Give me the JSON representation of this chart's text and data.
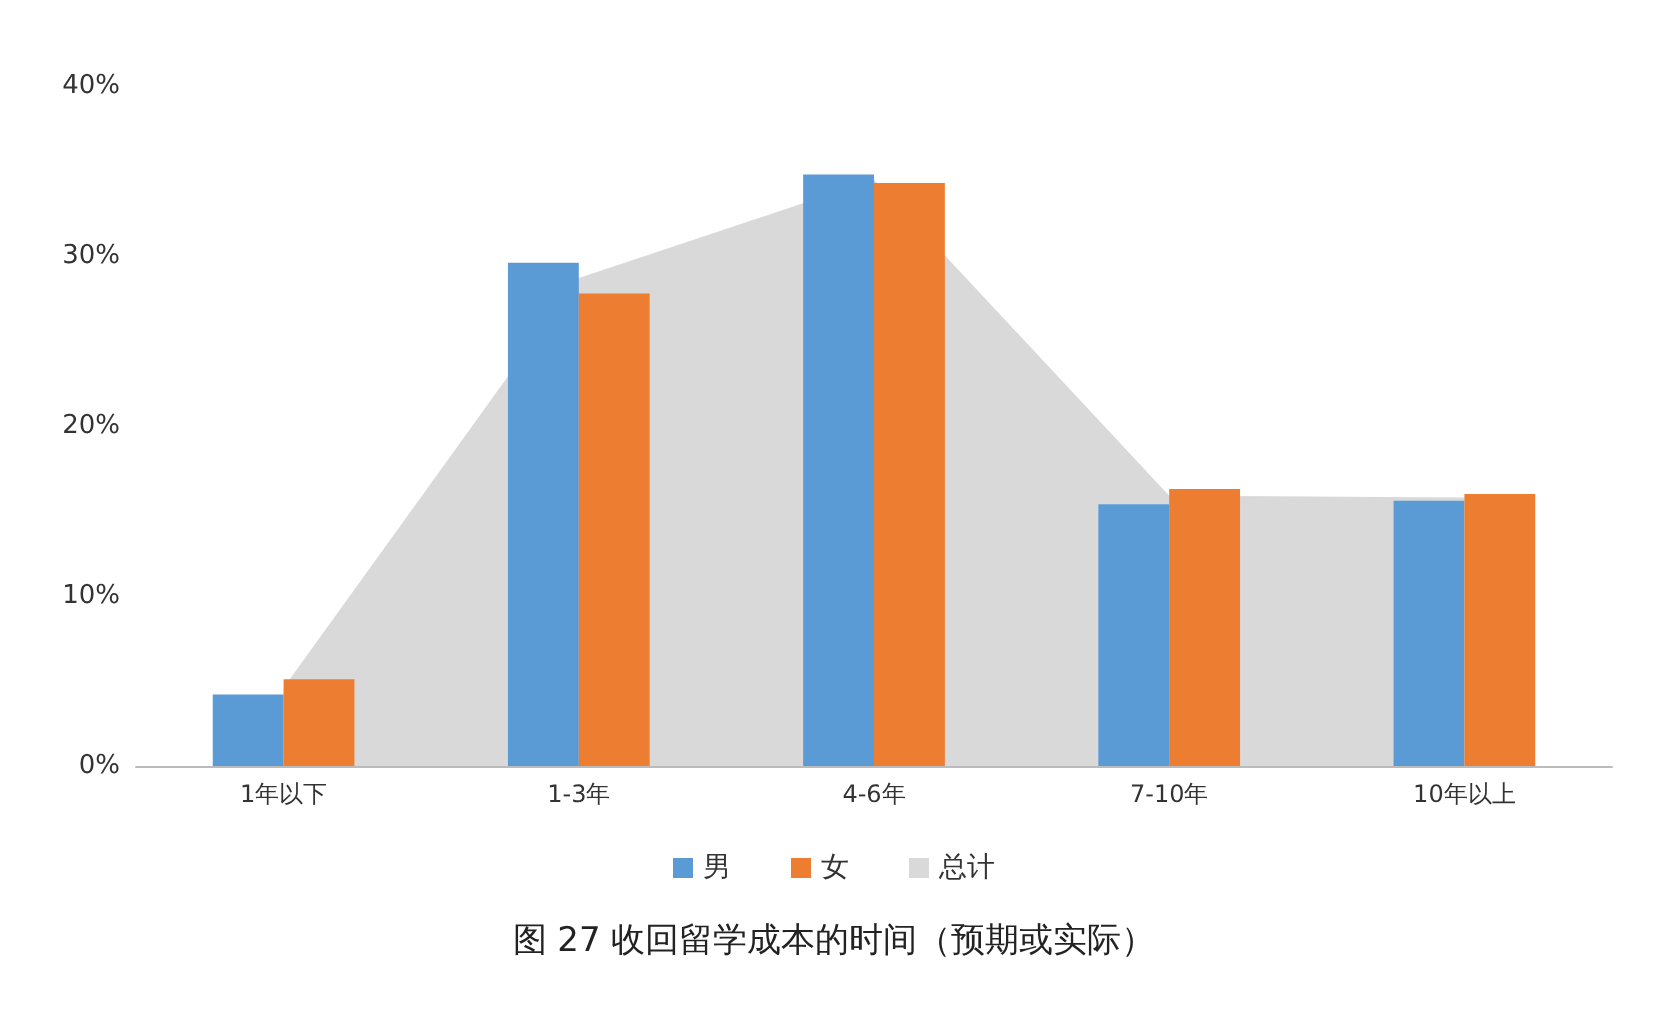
{
  "chart_data": {
    "type": "bar",
    "title": "图 27 收回留学成本的时间（预期或实际）",
    "categories": [
      "1年以下",
      "1-3年",
      "4-6年",
      "7-10年",
      "10年以上"
    ],
    "series": [
      {
        "name": "男",
        "color": "#5b9bd5",
        "values": [
          4.2,
          29.6,
          34.8,
          15.4,
          15.6
        ]
      },
      {
        "name": "女",
        "color": "#ed7d31",
        "values": [
          5.1,
          27.8,
          34.3,
          16.3,
          16.0
        ]
      },
      {
        "name": "总计",
        "type": "area",
        "color": "#d9d9d9",
        "values": [
          4.6,
          28.7,
          34.5,
          15.9,
          15.8
        ]
      }
    ],
    "ylim": [
      0,
      40
    ],
    "yticks": [
      {
        "value": 0,
        "label": "0%"
      },
      {
        "value": 10,
        "label": "10%"
      },
      {
        "value": 20,
        "label": "20%"
      },
      {
        "value": 30,
        "label": "30%"
      },
      {
        "value": 40,
        "label": "40%"
      }
    ],
    "grid": false,
    "legend": "bottom"
  }
}
